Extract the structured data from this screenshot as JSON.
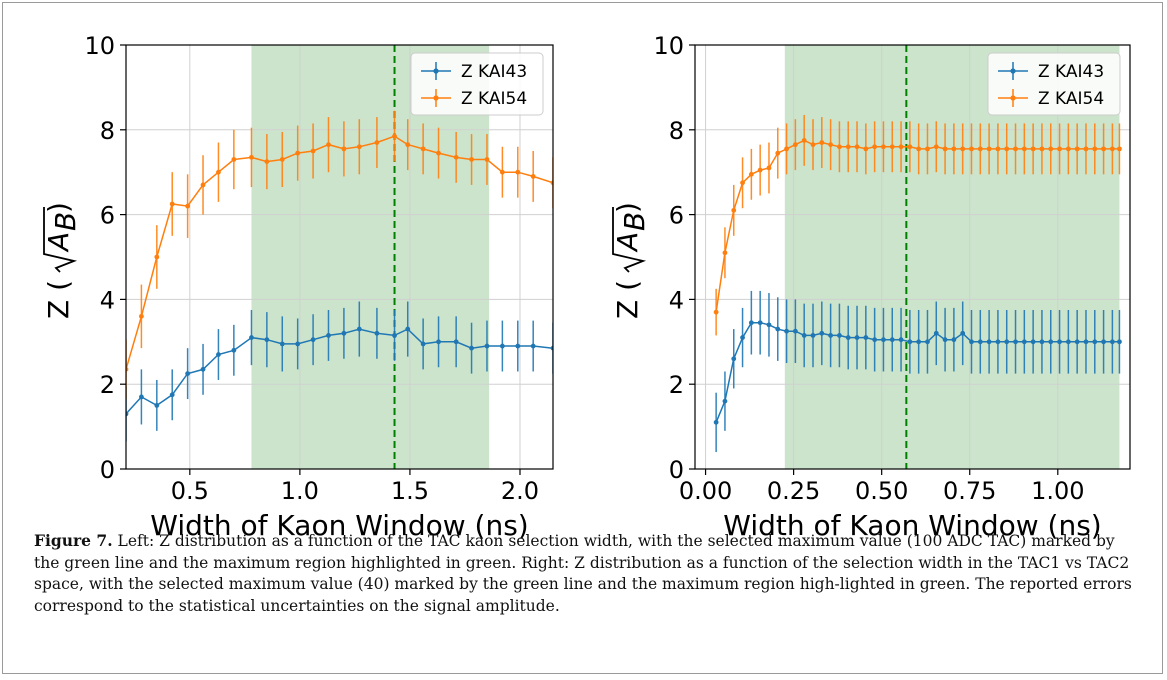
{
  "colors": {
    "series1": "#1f77b4",
    "series2": "#ff7f0e",
    "highlight_fill": "#8fc48f",
    "marker_line": "#008000",
    "grid": "#d0d0d0"
  },
  "chart_data": [
    {
      "type": "line",
      "errorbars": true,
      "xlabel": "Width of Kaon Window (ns)",
      "ylabel": "Z (√A_B)",
      "ylabel_text": "Z (",
      "ylabel_math": "A",
      "ylabel_sub": "B",
      "ylabel_close": ")",
      "xlim": [
        0.21,
        2.15
      ],
      "ylim": [
        0,
        10
      ],
      "xticks": [
        0.5,
        1.0,
        1.5,
        2.0
      ],
      "xtick_labels": [
        "0.5",
        "1.0",
        "1.5",
        "2.0"
      ],
      "yticks": [
        0,
        2,
        4,
        6,
        8,
        10
      ],
      "ytick_labels": [
        "0",
        "2",
        "4",
        "6",
        "8",
        "10"
      ],
      "grid": true,
      "legend": "top-right",
      "highlight_region": [
        0.78,
        1.86
      ],
      "marker_x": 1.43,
      "series": [
        {
          "name": "Z KAI43",
          "x": [
            0.21,
            0.28,
            0.35,
            0.42,
            0.49,
            0.56,
            0.63,
            0.7,
            0.78,
            0.85,
            0.92,
            0.99,
            1.06,
            1.13,
            1.2,
            1.27,
            1.35,
            1.43,
            1.49,
            1.56,
            1.63,
            1.71,
            1.78,
            1.85,
            1.92,
            1.99,
            2.06,
            2.15
          ],
          "y": [
            1.3,
            1.7,
            1.5,
            1.75,
            2.25,
            2.35,
            2.7,
            2.8,
            3.1,
            3.05,
            2.95,
            2.95,
            3.05,
            3.15,
            3.2,
            3.3,
            3.2,
            3.15,
            3.3,
            2.95,
            3.0,
            3.0,
            2.85,
            2.9,
            2.9,
            2.9,
            2.9,
            2.85
          ],
          "err": [
            0.65,
            0.65,
            0.6,
            0.6,
            0.6,
            0.6,
            0.6,
            0.6,
            0.65,
            0.65,
            0.65,
            0.6,
            0.6,
            0.6,
            0.6,
            0.65,
            0.6,
            0.6,
            0.65,
            0.6,
            0.6,
            0.6,
            0.6,
            0.6,
            0.6,
            0.6,
            0.6,
            0.6
          ]
        },
        {
          "name": "Z KAI54",
          "x": [
            0.21,
            0.28,
            0.35,
            0.42,
            0.49,
            0.56,
            0.63,
            0.7,
            0.78,
            0.85,
            0.92,
            0.99,
            1.06,
            1.13,
            1.2,
            1.27,
            1.35,
            1.43,
            1.49,
            1.56,
            1.63,
            1.71,
            1.78,
            1.85,
            1.92,
            1.99,
            2.06,
            2.15
          ],
          "y": [
            2.35,
            3.6,
            5.0,
            6.25,
            6.2,
            6.7,
            7.0,
            7.3,
            7.35,
            7.25,
            7.3,
            7.45,
            7.5,
            7.65,
            7.55,
            7.6,
            7.7,
            7.85,
            7.65,
            7.55,
            7.45,
            7.35,
            7.3,
            7.3,
            7.0,
            7.0,
            6.9,
            6.75
          ],
          "err": [
            0.7,
            0.75,
            0.75,
            0.75,
            0.75,
            0.7,
            0.7,
            0.7,
            0.7,
            0.65,
            0.65,
            0.65,
            0.65,
            0.65,
            0.65,
            0.65,
            0.6,
            0.6,
            0.6,
            0.6,
            0.6,
            0.6,
            0.6,
            0.6,
            0.6,
            0.6,
            0.6,
            0.6
          ]
        }
      ]
    },
    {
      "type": "line",
      "errorbars": true,
      "xlabel": "Width of Kaon Window (ns)",
      "ylabel": "Z (√A_B)",
      "ylabel_text": "Z (",
      "ylabel_math": "A",
      "ylabel_sub": "B",
      "ylabel_close": ")",
      "xlim": [
        -0.03,
        1.205
      ],
      "ylim": [
        0,
        10
      ],
      "xticks": [
        0.0,
        0.25,
        0.5,
        0.75,
        1.0
      ],
      "xtick_labels": [
        "0.00",
        "0.25",
        "0.50",
        "0.75",
        "1.00"
      ],
      "yticks": [
        0,
        2,
        4,
        6,
        8,
        10
      ],
      "ytick_labels": [
        "0",
        "2",
        "4",
        "6",
        "8",
        "10"
      ],
      "grid": true,
      "legend": "top-right",
      "highlight_region": [
        0.225,
        1.175
      ],
      "marker_x": 0.57,
      "series": [
        {
          "name": "Z KAI43",
          "x": [
            0.03,
            0.055,
            0.08,
            0.105,
            0.13,
            0.155,
            0.18,
            0.205,
            0.23,
            0.255,
            0.28,
            0.305,
            0.33,
            0.355,
            0.38,
            0.405,
            0.43,
            0.455,
            0.48,
            0.505,
            0.53,
            0.555,
            0.58,
            0.605,
            0.63,
            0.655,
            0.68,
            0.705,
            0.73,
            0.755,
            0.78,
            0.805,
            0.83,
            0.855,
            0.88,
            0.905,
            0.93,
            0.955,
            0.98,
            1.005,
            1.03,
            1.055,
            1.08,
            1.105,
            1.13,
            1.155,
            1.175
          ],
          "y": [
            1.1,
            1.6,
            2.6,
            3.1,
            3.45,
            3.45,
            3.4,
            3.3,
            3.25,
            3.25,
            3.15,
            3.15,
            3.2,
            3.15,
            3.15,
            3.1,
            3.1,
            3.1,
            3.05,
            3.05,
            3.05,
            3.05,
            3.0,
            3.0,
            3.0,
            3.2,
            3.05,
            3.05,
            3.2,
            3.0,
            3.0,
            3.0,
            3.0,
            3.0,
            3.0,
            3.0,
            3.0,
            3.0,
            3.0,
            3.0,
            3.0,
            3.0,
            3.0,
            3.0,
            3.0,
            3.0,
            3.0
          ],
          "err": [
            0.7,
            0.7,
            0.7,
            0.7,
            0.75,
            0.75,
            0.75,
            0.75,
            0.75,
            0.75,
            0.75,
            0.75,
            0.75,
            0.75,
            0.75,
            0.75,
            0.75,
            0.75,
            0.75,
            0.75,
            0.75,
            0.75,
            0.75,
            0.75,
            0.75,
            0.75,
            0.75,
            0.75,
            0.75,
            0.75,
            0.75,
            0.75,
            0.75,
            0.75,
            0.75,
            0.75,
            0.75,
            0.75,
            0.75,
            0.75,
            0.75,
            0.75,
            0.75,
            0.75,
            0.75,
            0.75,
            0.75
          ]
        },
        {
          "name": "Z KAI54",
          "x": [
            0.03,
            0.055,
            0.08,
            0.105,
            0.13,
            0.155,
            0.18,
            0.205,
            0.23,
            0.255,
            0.28,
            0.305,
            0.33,
            0.355,
            0.38,
            0.405,
            0.43,
            0.455,
            0.48,
            0.505,
            0.53,
            0.555,
            0.58,
            0.605,
            0.63,
            0.655,
            0.68,
            0.705,
            0.73,
            0.755,
            0.78,
            0.805,
            0.83,
            0.855,
            0.88,
            0.905,
            0.93,
            0.955,
            0.98,
            1.005,
            1.03,
            1.055,
            1.08,
            1.105,
            1.13,
            1.155,
            1.175
          ],
          "y": [
            3.7,
            5.1,
            6.1,
            6.75,
            6.95,
            7.05,
            7.1,
            7.45,
            7.55,
            7.65,
            7.75,
            7.65,
            7.7,
            7.65,
            7.6,
            7.6,
            7.6,
            7.55,
            7.6,
            7.6,
            7.6,
            7.6,
            7.6,
            7.55,
            7.55,
            7.6,
            7.55,
            7.55,
            7.55,
            7.55,
            7.55,
            7.55,
            7.55,
            7.55,
            7.55,
            7.55,
            7.55,
            7.55,
            7.55,
            7.55,
            7.55,
            7.55,
            7.55,
            7.55,
            7.55,
            7.55,
            7.55
          ],
          "err": [
            0.55,
            0.6,
            0.6,
            0.6,
            0.6,
            0.6,
            0.6,
            0.6,
            0.6,
            0.6,
            0.6,
            0.6,
            0.6,
            0.6,
            0.6,
            0.6,
            0.6,
            0.6,
            0.6,
            0.6,
            0.6,
            0.6,
            0.6,
            0.6,
            0.6,
            0.6,
            0.6,
            0.6,
            0.6,
            0.6,
            0.6,
            0.6,
            0.6,
            0.6,
            0.6,
            0.6,
            0.6,
            0.6,
            0.6,
            0.6,
            0.6,
            0.6,
            0.6,
            0.6,
            0.6,
            0.6,
            0.6
          ]
        }
      ]
    }
  ],
  "caption": {
    "label": "Figure 7.",
    "text": " Left: Z distribution as a function of the TAC kaon selection width, with the selected maximum value (100 ADC TAC) marked by the green line and the maximum region highlighted in green. Right: Z distribution as a function of the selection width in the TAC1 vs TAC2 space, with the selected maximum value (40) marked by the green line and the maximum region high-lighted in green. The reported errors correspond to the statistical uncertainties on the signal amplitude."
  }
}
